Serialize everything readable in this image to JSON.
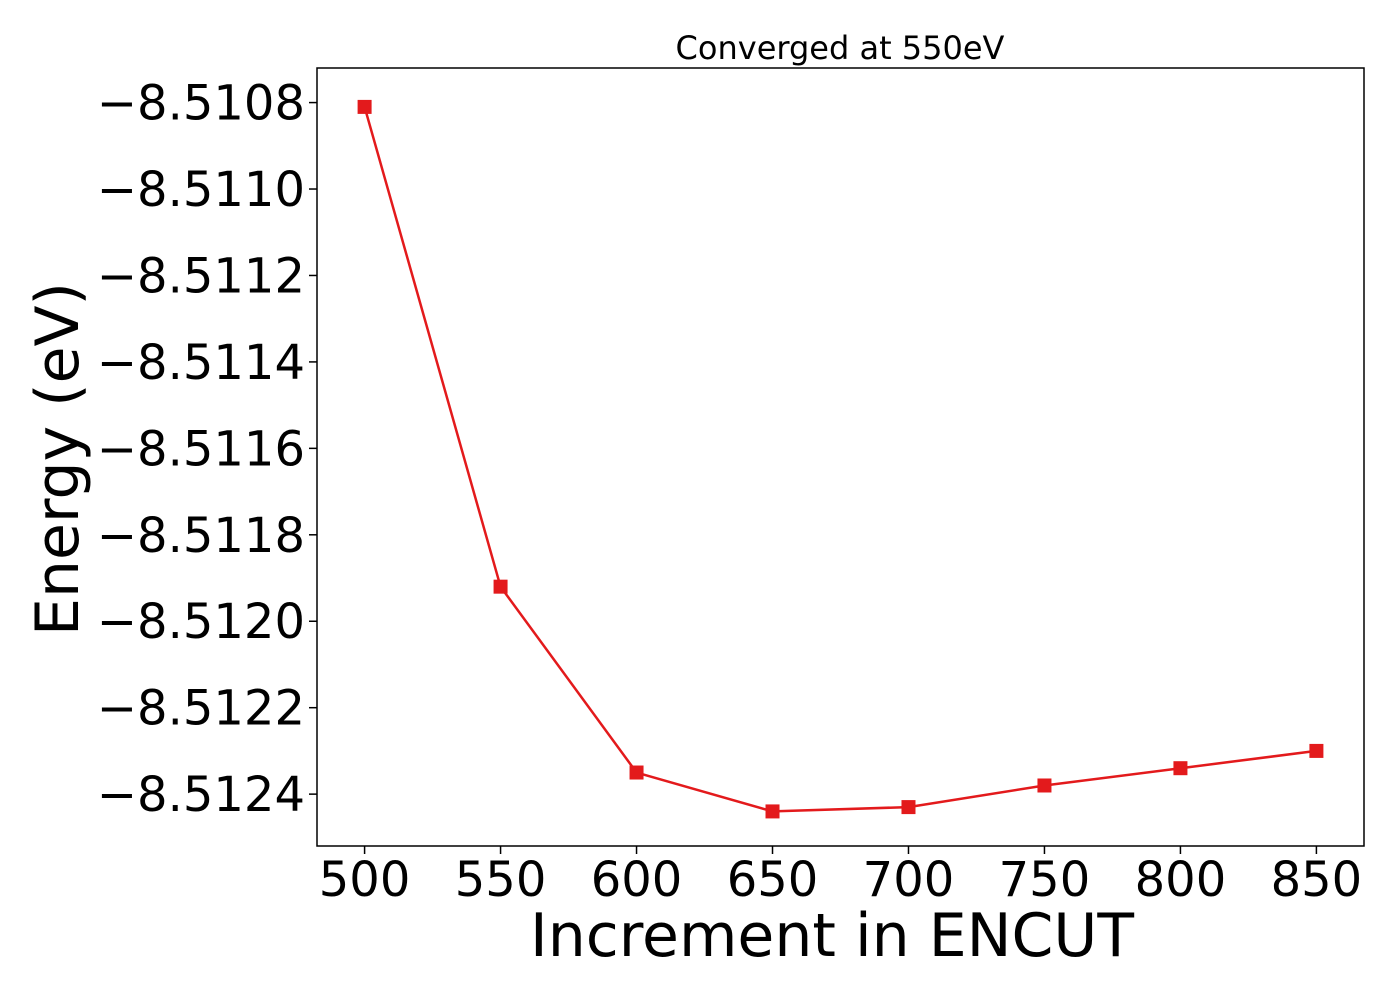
{
  "chart_data": {
    "type": "line",
    "title": "Converged at 550eV",
    "xlabel": "Increment in ENCUT",
    "ylabel": "Energy (eV)",
    "x": [
      500,
      550,
      600,
      650,
      700,
      750,
      800,
      850
    ],
    "x_ticks": [
      500,
      550,
      600,
      650,
      700,
      750,
      800,
      850
    ],
    "x_tick_labels": [
      "500",
      "550",
      "600",
      "650",
      "700",
      "750",
      "800",
      "850"
    ],
    "y_ticks": [
      -8.5108,
      -8.511,
      -8.5112,
      -8.5114,
      -8.5116,
      -8.5118,
      -8.512,
      -8.5122,
      -8.5124
    ],
    "y_tick_labels": [
      "−8.5108",
      "−8.5110",
      "−8.5112",
      "−8.5114",
      "−8.5116",
      "−8.5118",
      "−8.5120",
      "−8.5122",
      "−8.5124"
    ],
    "xlim": [
      482.5,
      867.5
    ],
    "ylim": [
      -8.51252,
      -8.51072
    ],
    "grid": false,
    "series": [
      {
        "values": [
          -8.51081,
          -8.51192,
          -8.51235,
          -8.51244,
          -8.51243,
          -8.51238,
          -8.51234,
          -8.5123
        ],
        "color": "#e31a1c",
        "marker": "square"
      }
    ]
  }
}
